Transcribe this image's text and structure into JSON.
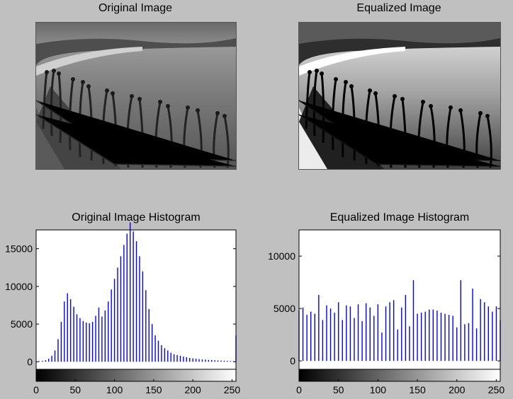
{
  "figure": {
    "titles": {
      "original_image": "Original Image",
      "equalized_image": "Equalized Image"
    }
  },
  "chart_data": [
    {
      "type": "bar",
      "title": "Original Image Histogram",
      "xlabel": "",
      "ylabel": "",
      "xlim": [
        0,
        255
      ],
      "ylim": [
        -1000,
        17500
      ],
      "xticks": [
        0,
        50,
        100,
        150,
        200,
        250
      ],
      "yticks": [
        0,
        5000,
        10000,
        15000
      ],
      "bar_color": "#0000ff",
      "colorbar": "gray",
      "x": [
        0,
        4,
        8,
        12,
        16,
        20,
        24,
        28,
        32,
        36,
        40,
        44,
        48,
        52,
        56,
        60,
        64,
        68,
        72,
        76,
        80,
        84,
        88,
        92,
        96,
        100,
        104,
        108,
        112,
        116,
        120,
        124,
        128,
        132,
        136,
        140,
        144,
        148,
        152,
        156,
        160,
        164,
        168,
        172,
        176,
        180,
        184,
        188,
        192,
        196,
        200,
        204,
        208,
        212,
        216,
        220,
        224,
        228,
        232,
        236,
        240,
        244,
        248,
        252,
        255
      ],
      "values": [
        50,
        80,
        120,
        200,
        400,
        800,
        1500,
        3000,
        5300,
        8000,
        9100,
        8300,
        7300,
        6300,
        5800,
        5400,
        5200,
        5100,
        5300,
        6100,
        7200,
        6000,
        6800,
        8000,
        9600,
        11000,
        12500,
        14000,
        15500,
        17000,
        18500,
        17300,
        16000,
        14000,
        12000,
        9500,
        7000,
        5000,
        3500,
        2800,
        2200,
        1800,
        1500,
        1200,
        1000,
        900,
        800,
        700,
        600,
        500,
        450,
        400,
        350,
        300,
        280,
        250,
        220,
        200,
        180,
        160,
        140,
        120,
        100,
        80,
        3500
      ]
    },
    {
      "type": "bar",
      "title": "Equalized Image Histogram",
      "xlabel": "",
      "ylabel": "",
      "xlim": [
        0,
        255
      ],
      "ylim": [
        -800,
        12500
      ],
      "xticks": [
        0,
        50,
        100,
        150,
        200,
        250
      ],
      "yticks": [
        0,
        5000,
        10000
      ],
      "bar_color": "#0000ff",
      "colorbar": "gray",
      "x": [
        0,
        5,
        10,
        15,
        20,
        25,
        30,
        35,
        40,
        45,
        50,
        55,
        60,
        65,
        70,
        75,
        80,
        85,
        90,
        95,
        100,
        105,
        110,
        115,
        120,
        125,
        130,
        135,
        140,
        145,
        150,
        155,
        160,
        165,
        170,
        175,
        180,
        185,
        190,
        195,
        200,
        205,
        210,
        215,
        220,
        225,
        230,
        235,
        240,
        245,
        250,
        255
      ],
      "values": [
        4800,
        5100,
        4400,
        4700,
        4500,
        6300,
        3900,
        5300,
        5000,
        4600,
        5600,
        3900,
        5300,
        5200,
        4100,
        5400,
        3800,
        5500,
        5100,
        4300,
        5400,
        2700,
        5200,
        5600,
        5800,
        3000,
        5100,
        6300,
        3300,
        7700,
        4500,
        4600,
        4700,
        4900,
        4900,
        4800,
        4600,
        4500,
        4400,
        4300,
        3200,
        7700,
        3500,
        3600,
        6900,
        3100,
        5900,
        5600,
        5200,
        4700,
        5200,
        3900
      ]
    }
  ]
}
